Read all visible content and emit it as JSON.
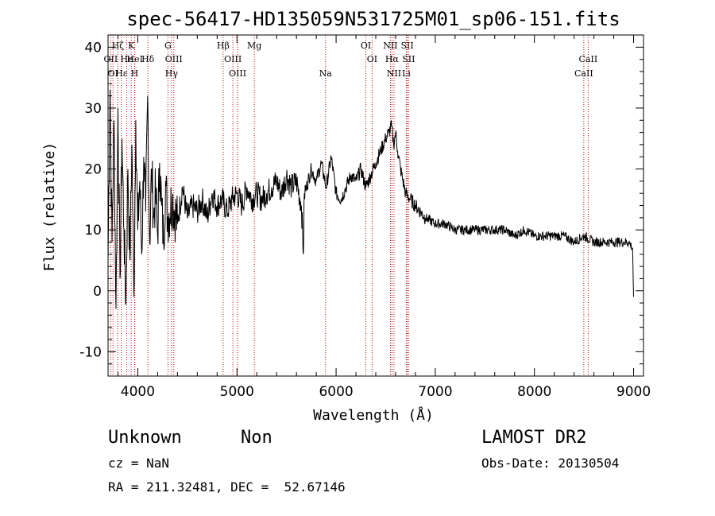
{
  "chart_data": {
    "type": "line",
    "title": "spec-56417-HD135059N531725M01_sp06-151.fits",
    "xlabel": "Wavelength (Å)",
    "ylabel": "Flux (relative)",
    "xlim": [
      3700,
      9100
    ],
    "ylim": [
      -14,
      42
    ],
    "xticks": [
      4000,
      5000,
      6000,
      7000,
      8000,
      9000
    ],
    "yticks": [
      -10,
      0,
      10,
      20,
      30,
      40
    ],
    "series": [
      {
        "name": "flux",
        "x": [
          3700,
          3720,
          3740,
          3760,
          3780,
          3800,
          3820,
          3840,
          3860,
          3880,
          3900,
          3920,
          3940,
          3960,
          3980,
          4000,
          4020,
          4040,
          4060,
          4080,
          4100,
          4120,
          4140,
          4160,
          4180,
          4200,
          4220,
          4240,
          4260,
          4280,
          4300,
          4350,
          4400,
          4450,
          4500,
          4550,
          4600,
          4650,
          4700,
          4750,
          4800,
          4850,
          4900,
          4950,
          5000,
          5050,
          5100,
          5150,
          5200,
          5250,
          5300,
          5350,
          5400,
          5450,
          5500,
          5550,
          5600,
          5650,
          5670,
          5680,
          5700,
          5750,
          5800,
          5850,
          5900,
          5950,
          6000,
          6050,
          6100,
          6150,
          6200,
          6250,
          6300,
          6350,
          6400,
          6450,
          6500,
          6530,
          6560,
          6580,
          6600,
          6620,
          6650,
          6700,
          6750,
          6800,
          6850,
          6900,
          7000,
          7100,
          7200,
          7300,
          7400,
          7500,
          7600,
          7700,
          7800,
          7900,
          8000,
          8100,
          8200,
          8300,
          8400,
          8500,
          8600,
          8700,
          8800,
          8900,
          8950,
          8990,
          9000
        ],
        "y": [
          5,
          33,
          8,
          28,
          -3,
          30,
          2,
          25,
          10,
          -2,
          20,
          5,
          24,
          -1,
          28,
          10,
          18,
          6,
          22,
          13,
          32,
          8,
          20,
          12,
          16,
          9,
          21,
          14,
          8,
          18,
          12,
          15,
          11,
          17,
          12,
          14,
          13,
          15,
          12,
          16,
          14,
          15,
          13,
          15,
          16,
          14,
          17,
          15,
          16,
          15,
          16,
          17,
          18,
          16,
          19,
          17,
          18,
          14,
          6,
          16,
          17,
          20,
          18,
          21,
          17,
          22,
          16,
          15,
          17,
          19,
          18,
          20,
          17,
          19,
          21,
          23,
          25,
          26,
          27,
          24,
          26,
          23,
          20,
          16,
          15,
          14,
          13,
          12,
          11,
          11,
          10,
          10,
          10,
          10,
          10,
          10,
          9,
          10,
          9,
          9,
          9,
          9,
          8,
          9,
          8,
          8,
          8,
          8,
          8,
          7,
          -1
        ]
      }
    ],
    "lines": [
      {
        "label": "Hζ",
        "row": 1,
        "x": 3799
      },
      {
        "label": "K",
        "row": 1,
        "x": 3934
      },
      {
        "label": "G",
        "row": 1,
        "x": 4304
      },
      {
        "label": "Hβ",
        "row": 1,
        "x": 4861
      },
      {
        "label": "Mg",
        "row": 1,
        "x": 5175
      },
      {
        "label": "OI",
        "row": 1,
        "x": 6300
      },
      {
        "label": "NII",
        "row": 1,
        "x": 6548
      },
      {
        "label": "SII",
        "row": 1,
        "x": 6717
      },
      {
        "label": "OII",
        "row": 2,
        "x": 3727
      },
      {
        "label": "He",
        "row": 2,
        "x": 3889
      },
      {
        "label": "HeI",
        "row": 2,
        "x": 3970
      },
      {
        "label": "Hδ",
        "row": 2,
        "x": 4102
      },
      {
        "label": "OIII",
        "row": 2,
        "x": 4363
      },
      {
        "label": "OIII",
        "row": 2,
        "x": 4959
      },
      {
        "label": "OI",
        "row": 2,
        "x": 6363
      },
      {
        "label": "Hα",
        "row": 2,
        "x": 6563
      },
      {
        "label": "SII",
        "row": 2,
        "x": 6731
      },
      {
        "label": "CaII",
        "row": 2,
        "x": 8542
      },
      {
        "label": "OI",
        "row": 3,
        "x": 3750
      },
      {
        "label": "Hε",
        "row": 3,
        "x": 3835
      },
      {
        "label": "H",
        "row": 3,
        "x": 3968
      },
      {
        "label": "Hγ",
        "row": 3,
        "x": 4340
      },
      {
        "label": "OIII",
        "row": 3,
        "x": 5007
      },
      {
        "label": "Na",
        "row": 3,
        "x": 5893
      },
      {
        "label": "NII",
        "row": 3,
        "x": 6584
      },
      {
        "label": "Li",
        "row": 3,
        "x": 6708
      },
      {
        "label": "CaII",
        "row": 3,
        "x": 8498
      }
    ]
  },
  "info": {
    "object_type": "Unknown",
    "subclass": "Non",
    "survey": "LAMOST DR2",
    "redshift": "cz = NaN",
    "obs_date": "Obs-Date: 20130504",
    "coords": "RA = 211.32481, DEC =  52.67146"
  }
}
